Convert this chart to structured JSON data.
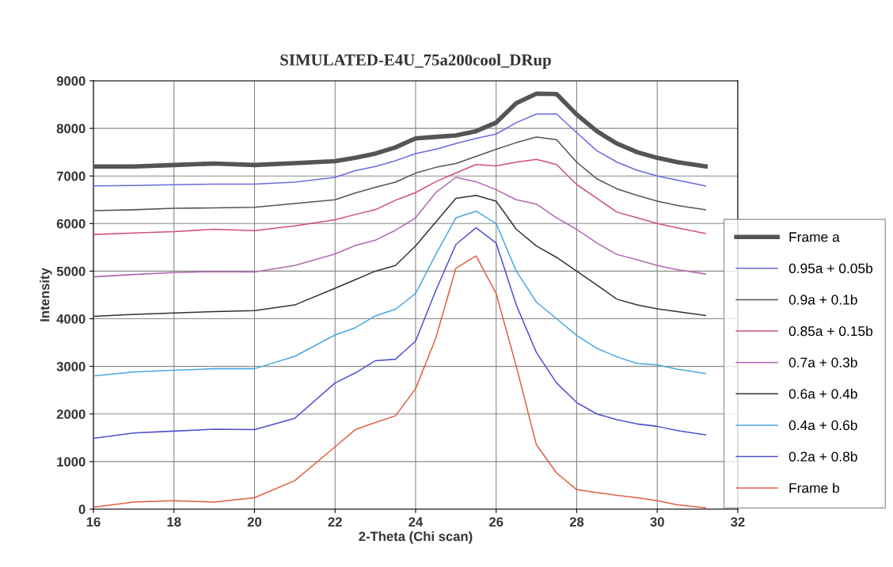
{
  "chart_data": {
    "type": "line",
    "title": "SIMULATED-E4U_75a200cool_DRup",
    "xlabel": "2-Theta (Chi scan)",
    "ylabel": "Intensity",
    "x": [
      16,
      17,
      18,
      19,
      20,
      21,
      22,
      22.5,
      23,
      23.5,
      24,
      24.5,
      25,
      25.5,
      26,
      26.5,
      27,
      27.5,
      28,
      28.5,
      29,
      29.5,
      30,
      30.5,
      31.2
    ],
    "series": [
      {
        "name": "Frame a",
        "color": "#555555",
        "values": [
          7200,
          7200,
          7230,
          7260,
          7230,
          7270,
          7310,
          7380,
          7470,
          7600,
          7790,
          7820,
          7850,
          7940,
          8120,
          8530,
          8730,
          8720,
          8290,
          7940,
          7680,
          7500,
          7380,
          7290,
          7200
        ]
      },
      {
        "name": "0.95a + 0.05b",
        "color": "#6a6ae0",
        "values": [
          6790,
          6800,
          6815,
          6830,
          6830,
          6870,
          6970,
          7110,
          7200,
          7320,
          7470,
          7560,
          7680,
          7790,
          7880,
          8120,
          8300,
          8300,
          7910,
          7530,
          7290,
          7120,
          7000,
          6910,
          6790
        ]
      },
      {
        "name": "0.9a + 0.1b",
        "color": "#555555",
        "values": [
          6270,
          6290,
          6320,
          6330,
          6340,
          6420,
          6500,
          6640,
          6760,
          6870,
          7060,
          7180,
          7260,
          7410,
          7560,
          7700,
          7820,
          7760,
          7290,
          6940,
          6730,
          6590,
          6470,
          6380,
          6290
        ]
      },
      {
        "name": "0.85a + 0.15b",
        "color": "#d0507a",
        "values": [
          5770,
          5800,
          5830,
          5880,
          5850,
          5950,
          6080,
          6190,
          6290,
          6490,
          6650,
          6880,
          7060,
          7240,
          7210,
          7290,
          7350,
          7240,
          6820,
          6530,
          6240,
          6120,
          6000,
          5910,
          5790
        ]
      },
      {
        "name": "0.7a + 0.3b",
        "color": "#b06ab0",
        "values": [
          4880,
          4930,
          4970,
          4990,
          4980,
          5120,
          5360,
          5540,
          5650,
          5860,
          6120,
          6650,
          6970,
          6880,
          6710,
          6500,
          6410,
          6120,
          5880,
          5590,
          5350,
          5240,
          5120,
          5030,
          4940
        ]
      },
      {
        "name": "0.6a + 0.4b",
        "color": "#333333",
        "values": [
          4050,
          4090,
          4120,
          4150,
          4170,
          4290,
          4640,
          4820,
          5000,
          5120,
          5530,
          6030,
          6530,
          6590,
          6470,
          5880,
          5530,
          5290,
          5000,
          4710,
          4410,
          4290,
          4210,
          4150,
          4070
        ]
      },
      {
        "name": "0.4a + 0.6b",
        "color": "#4aa8e0",
        "values": [
          2800,
          2880,
          2920,
          2950,
          2950,
          3210,
          3660,
          3810,
          4060,
          4200,
          4530,
          5350,
          6120,
          6260,
          6000,
          5000,
          4350,
          4000,
          3650,
          3380,
          3200,
          3060,
          3030,
          2940,
          2850
        ]
      },
      {
        "name": "0.2a + 0.8b",
        "color": "#5050d0",
        "values": [
          1490,
          1600,
          1640,
          1680,
          1670,
          1910,
          2650,
          2860,
          3120,
          3150,
          3530,
          4590,
          5560,
          5910,
          5590,
          4290,
          3290,
          2650,
          2240,
          2000,
          1880,
          1790,
          1740,
          1650,
          1560
        ]
      },
      {
        "name": "Frame b",
        "color": "#e06040",
        "values": [
          40,
          150,
          180,
          150,
          240,
          600,
          1310,
          1670,
          1820,
          1960,
          2530,
          3590,
          5060,
          5320,
          4530,
          3000,
          1350,
          760,
          410,
          350,
          290,
          240,
          180,
          90,
          30
        ]
      }
    ],
    "xlim": [
      16,
      32
    ],
    "xticks": [
      16,
      18,
      20,
      22,
      24,
      26,
      28,
      30,
      32
    ],
    "ylim": [
      0,
      9000
    ],
    "yticks": [
      0,
      1000,
      2000,
      3000,
      4000,
      5000,
      6000,
      7000,
      8000,
      9000
    ],
    "grid": true,
    "legend": "right",
    "marker": "none",
    "line_style": "solid"
  }
}
